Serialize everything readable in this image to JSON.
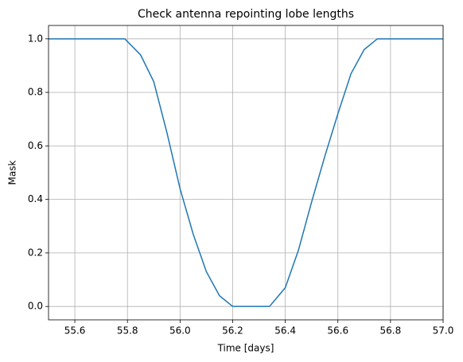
{
  "chart_data": {
    "type": "line",
    "title": "Check antenna repointing lobe lengths",
    "x_label": "Time [days]",
    "y_label": "Mask",
    "x": [
      55.5,
      55.79,
      55.85,
      55.9,
      55.95,
      56.0,
      56.05,
      56.1,
      56.15,
      56.2,
      56.34,
      56.4,
      56.45,
      56.5,
      56.55,
      56.6,
      56.65,
      56.7,
      56.75,
      57.0
    ],
    "series": [
      {
        "name": "Mask",
        "color": "#1f77b4",
        "values": [
          1.0,
          1.0,
          0.94,
          0.84,
          0.65,
          0.44,
          0.27,
          0.13,
          0.04,
          0.0,
          0.0,
          0.07,
          0.21,
          0.39,
          0.56,
          0.72,
          0.87,
          0.96,
          1.0,
          1.0
        ]
      }
    ],
    "xlim": [
      55.5,
      57.0
    ],
    "xticks": [
      55.6,
      55.8,
      {
        "value": 56.0,
        "label": "56.0"
      },
      56.2,
      56.4,
      56.6,
      56.8,
      {
        "value": 57.0,
        "label": "57.0"
      }
    ],
    "ylim": [
      -0.05,
      1.05
    ],
    "yticks": [
      {
        "value": 0.0,
        "label": "0.0"
      },
      0.2,
      0.4,
      0.6,
      0.8,
      {
        "value": 1.0,
        "label": "1.0"
      }
    ],
    "grid": true
  }
}
